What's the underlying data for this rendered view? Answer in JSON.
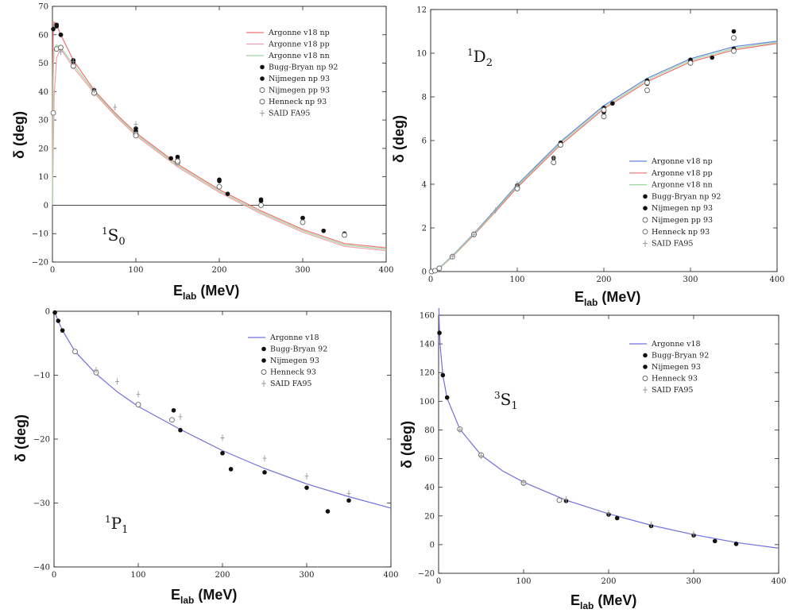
{
  "chart_data": [
    {
      "type": "line",
      "wave_label": {
        "pre": "1",
        "main": "S",
        "sub": "0"
      },
      "xlabel": {
        "main": "E",
        "sub": "lab",
        "unit": " (MeV)"
      },
      "ylabel": "δ (deg)",
      "xlim": [
        0,
        400
      ],
      "ylim": [
        -20,
        70
      ],
      "xticks": [
        0,
        100,
        200,
        300,
        400
      ],
      "yticks": [
        -20,
        -10,
        0,
        10,
        20,
        30,
        40,
        50,
        60,
        70
      ],
      "zero_line": true,
      "legend_position": "top-right",
      "series": [
        {
          "name": "Argonne v18 np",
          "kind": "line",
          "color": "#f07070",
          "x": [
            0,
            0.5,
            1,
            2,
            5,
            10,
            25,
            50,
            75,
            100,
            150,
            200,
            250,
            300,
            350,
            400
          ],
          "y": [
            0,
            50,
            62,
            64.5,
            63.5,
            60,
            51,
            40.5,
            32.5,
            25.5,
            14.5,
            5.5,
            -2,
            -8.5,
            -13.5,
            -15
          ]
        },
        {
          "name": "Argonne v18 pp",
          "kind": "line",
          "color": "#f0a0b0",
          "x": [
            0,
            1,
            2,
            5,
            10,
            25,
            50,
            75,
            100,
            150,
            200,
            250,
            300,
            350,
            400
          ],
          "y": [
            0,
            18,
            38,
            52,
            55,
            48.5,
            39.5,
            31.5,
            24.5,
            13.5,
            4.5,
            -3,
            -9.5,
            -14.5,
            -16
          ]
        },
        {
          "name": "Argonne v18 nn",
          "kind": "line",
          "color": "#a0d8a0",
          "x": [
            0,
            1,
            2,
            5,
            10,
            25,
            50,
            75,
            100,
            150,
            200,
            250,
            300,
            350,
            400
          ],
          "y": [
            0,
            45,
            55,
            56.5,
            55.5,
            49.5,
            40,
            32,
            25,
            14,
            5,
            -2.5,
            -9,
            -14,
            -15.5
          ]
        },
        {
          "name": "Bugg-Bryan np 92",
          "kind": "filled",
          "x": [
            1,
            5,
            10,
            25,
            50,
            100,
            142,
            150,
            200,
            210,
            250,
            300,
            325,
            350
          ],
          "y": [
            62,
            63.5,
            60,
            51,
            40.5,
            27,
            16.5,
            17,
            9,
            4,
            2,
            -4.5,
            -9,
            -10.5
          ]
        },
        {
          "name": "Nijmegen np 93",
          "kind": "filled",
          "x": [
            5,
            10,
            25,
            50,
            100,
            150,
            200,
            250,
            300,
            350
          ],
          "y": [
            63,
            60,
            50.5,
            40,
            26,
            16,
            8.5,
            1.5,
            -4.5,
            -10
          ]
        },
        {
          "name": "Nijmegen pp 93",
          "kind": "open",
          "x": [
            1,
            5,
            10,
            25,
            50,
            100,
            150,
            200,
            250,
            300,
            350
          ],
          "y": [
            32.5,
            55,
            55.5,
            49,
            39.5,
            25,
            15,
            6.5,
            0,
            -6,
            -10.5
          ]
        },
        {
          "name": "Henneck np 93",
          "kind": "open",
          "x": [
            50,
            100,
            150
          ],
          "y": [
            39.5,
            24.5,
            15.5
          ]
        },
        {
          "name": "SAID FA95",
          "kind": "plus",
          "x": [
            10,
            25,
            50,
            75,
            100
          ],
          "y": [
            54,
            50.5,
            40.5,
            34.5,
            28.5
          ]
        }
      ]
    },
    {
      "type": "line",
      "wave_label": {
        "pre": "1",
        "main": "D",
        "sub": "2"
      },
      "xlabel": {
        "main": "E",
        "sub": "lab",
        "unit": " (MeV)"
      },
      "ylabel": "δ (deg)",
      "xlim": [
        0,
        400
      ],
      "ylim": [
        0,
        12
      ],
      "xticks": [
        0,
        100,
        200,
        300,
        400
      ],
      "yticks": [
        0,
        2,
        4,
        6,
        8,
        10,
        12
      ],
      "zero_line": false,
      "legend_position": "center-right",
      "series": [
        {
          "name": "Argonne v18 np",
          "kind": "line",
          "color": "#6080e0",
          "x": [
            0,
            5,
            10,
            25,
            50,
            75,
            100,
            150,
            200,
            250,
            300,
            350,
            400
          ],
          "y": [
            0,
            0.05,
            0.17,
            0.72,
            1.75,
            2.85,
            3.98,
            5.95,
            7.6,
            8.85,
            9.75,
            10.3,
            10.55
          ]
        },
        {
          "name": "Argonne v18 pp",
          "kind": "line",
          "color": "#f07070",
          "x": [
            0,
            5,
            10,
            25,
            50,
            75,
            100,
            150,
            200,
            250,
            300,
            350,
            400
          ],
          "y": [
            0,
            0.04,
            0.15,
            0.68,
            1.68,
            2.75,
            3.85,
            5.8,
            7.45,
            8.7,
            9.6,
            10.15,
            10.45
          ]
        },
        {
          "name": "Argonne v18 nn",
          "kind": "line",
          "color": "#a0d8a0",
          "x": [
            0,
            5,
            10,
            25,
            50,
            75,
            100,
            150,
            200,
            250,
            300,
            350,
            400
          ],
          "y": [
            0,
            0.05,
            0.16,
            0.7,
            1.72,
            2.8,
            3.92,
            5.88,
            7.52,
            8.78,
            9.68,
            10.22,
            10.5
          ]
        },
        {
          "name": "Bugg-Bryan np 92",
          "kind": "filled",
          "x": [
            142,
            150,
            200,
            210,
            250,
            300,
            325,
            350
          ],
          "y": [
            5.2,
            5.8,
            7.3,
            7.7,
            8.6,
            9.7,
            9.8,
            11
          ]
        },
        {
          "name": "Nijmegen np 93",
          "kind": "filled",
          "x": [
            1,
            5,
            10,
            25,
            50,
            100,
            150,
            200,
            250,
            300,
            350
          ],
          "y": [
            0,
            0.05,
            0.16,
            0.7,
            1.73,
            3.95,
            5.9,
            7.5,
            8.75,
            9.65,
            10.2
          ]
        },
        {
          "name": "Nijmegen pp 93",
          "kind": "open",
          "x": [
            1,
            5,
            10,
            25,
            50,
            100,
            150,
            200,
            250,
            300,
            350
          ],
          "y": [
            0,
            0.04,
            0.15,
            0.68,
            1.7,
            3.85,
            5.8,
            7.4,
            8.65,
            9.55,
            10.1
          ]
        },
        {
          "name": "Henneck np 93",
          "kind": "open",
          "x": [
            100,
            142,
            200,
            250,
            350
          ],
          "y": [
            3.8,
            5,
            7.1,
            8.3,
            10.7
          ]
        },
        {
          "name": "SAID FA95",
          "kind": "plus",
          "x": [
            25,
            50,
            75,
            100,
            142
          ],
          "y": [
            0.7,
            1.7,
            2.8,
            4,
            5.2
          ]
        }
      ]
    },
    {
      "type": "line",
      "wave_label": {
        "pre": "1",
        "main": "P",
        "sub": "1"
      },
      "xlabel": {
        "main": "E",
        "sub": "lab",
        "unit": " (MeV)"
      },
      "ylabel": "δ (deg)",
      "xlim": [
        0,
        400
      ],
      "ylim": [
        -40,
        0
      ],
      "xticks": [
        0,
        100,
        200,
        300,
        400
      ],
      "yticks": [
        -40,
        -30,
        -20,
        -10,
        0
      ],
      "zero_line": false,
      "legend_position": "top-right",
      "series": [
        {
          "name": "Argonne v18",
          "kind": "line",
          "color": "#7070e0",
          "x": [
            0,
            1,
            5,
            10,
            25,
            50,
            75,
            100,
            150,
            200,
            250,
            300,
            350,
            400
          ],
          "y": [
            0,
            -0.2,
            -1.5,
            -3.0,
            -6.3,
            -9.8,
            -12.6,
            -14.9,
            -18.5,
            -21.8,
            -24.6,
            -27.0,
            -29.0,
            -30.8
          ]
        },
        {
          "name": "Bugg-Bryan 92",
          "kind": "filled",
          "x": [
            1,
            5,
            10,
            142,
            150,
            200,
            210,
            250,
            300,
            325,
            350
          ],
          "y": [
            -0.2,
            -1.5,
            -3,
            -15.5,
            -18.6,
            -22.2,
            -24.7,
            -25.2,
            -27.6,
            -31.3,
            -29.6
          ]
        },
        {
          "name": "Nijmegen 93",
          "kind": "filled",
          "x": [],
          "y": []
        },
        {
          "name": "Henneck 93",
          "kind": "open",
          "x": [
            25,
            50,
            100,
            140
          ],
          "y": [
            -6.3,
            -9.6,
            -14.6,
            -17
          ]
        },
        {
          "name": "SAID FA95",
          "kind": "plus",
          "x": [
            50,
            75,
            100,
            150,
            200,
            250,
            300,
            350
          ],
          "y": [
            -9.2,
            -11,
            -13,
            -16.5,
            -19.8,
            -23,
            -25.8,
            -28.5
          ]
        }
      ]
    },
    {
      "type": "line",
      "wave_label": {
        "pre": "3",
        "main": "S",
        "sub": "1"
      },
      "xlabel": {
        "main": "E",
        "sub": "lab",
        "unit": " (MeV)"
      },
      "ylabel": "δ (deg)",
      "xlim": [
        0,
        400
      ],
      "ylim": [
        -20,
        160
      ],
      "xticks": [
        0,
        100,
        200,
        300,
        400
      ],
      "yticks": [
        -20,
        0,
        20,
        40,
        60,
        80,
        100,
        120,
        140,
        160
      ],
      "zero_line": false,
      "legend_position": "top-right",
      "series": [
        {
          "name": "Argonne v18",
          "kind": "line",
          "color": "#7070e0",
          "x": [
            0.3,
            1,
            2,
            5,
            10,
            25,
            50,
            75,
            100,
            150,
            200,
            250,
            300,
            350,
            400
          ],
          "y": [
            165,
            148,
            138,
            118,
            102,
            80.5,
            62.5,
            51.5,
            43.5,
            31,
            21.5,
            13.5,
            7,
            1.5,
            -2.5
          ]
        },
        {
          "name": "Bugg-Bryan 92",
          "kind": "filled",
          "x": [
            1,
            5,
            10,
            150,
            200,
            210,
            250,
            300,
            325,
            350
          ],
          "y": [
            147.7,
            118.2,
            102.6,
            30.5,
            21,
            18.5,
            13,
            6.5,
            2.5,
            0.5
          ]
        },
        {
          "name": "Nijmegen 93",
          "kind": "filled",
          "x": [],
          "y": []
        },
        {
          "name": "Henneck 93",
          "kind": "open",
          "x": [
            25,
            50,
            100,
            142
          ],
          "y": [
            80.5,
            62.5,
            43,
            31
          ]
        },
        {
          "name": "SAID FA95",
          "kind": "plus",
          "x": [
            25,
            50,
            100,
            150,
            200,
            250,
            300
          ],
          "y": [
            80,
            62,
            43.5,
            31.5,
            22,
            14,
            7.5
          ]
        }
      ]
    }
  ]
}
